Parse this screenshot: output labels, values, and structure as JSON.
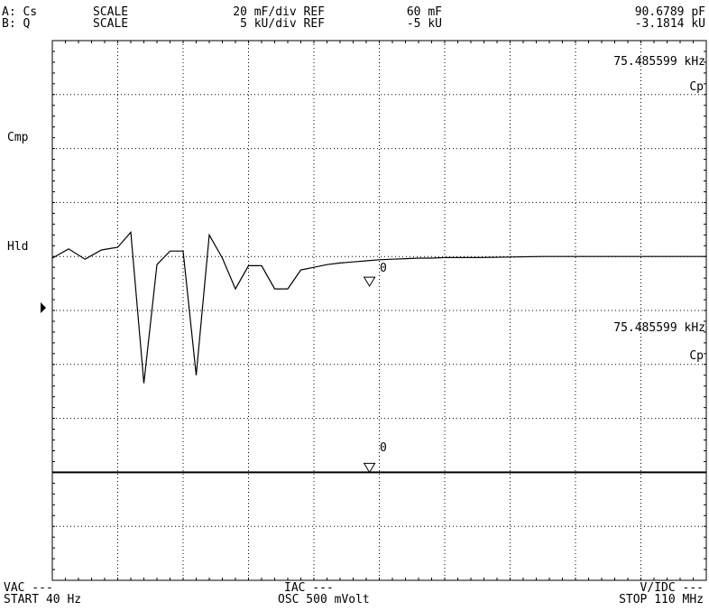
{
  "header": {
    "a_label": "A: Cs",
    "b_label": "B: Q",
    "a_scale_word": "SCALE",
    "b_scale_word": "SCALE",
    "a_scale_value": "20 mF/div REF",
    "b_scale_value": "5 kU/div REF",
    "a_ref_value": "60 mF",
    "b_ref_value": "-5 kU",
    "a_marker_value": "90.6789 pF",
    "b_marker_value": "-3.1814 kU"
  },
  "side_labels": {
    "cmp": "Cmp",
    "hld": "Hld"
  },
  "marker_readouts": {
    "top_freq": "75.485599 kHz",
    "top_param": "Cp",
    "bottom_freq": "75.485599 kHz",
    "bottom_param": "Cp"
  },
  "marker_labels": {
    "a": "0",
    "b": "0"
  },
  "footer": {
    "vac": "VAC ---",
    "iac": "IAC ---",
    "vdc": "V/IDC ---",
    "start": "START 40 Hz",
    "osc": "OSC 500 mVolt",
    "stop": "STOP 110 MHz"
  },
  "colors": {
    "trace": "#000000",
    "grid": "#000000",
    "background": "#ffffff"
  },
  "chart_data": {
    "type": "line",
    "grid": true,
    "x_divisions": 10,
    "y_divisions": 10,
    "x_start": "40 Hz",
    "x_stop": "110 MHz",
    "series": [
      {
        "id": "trace-a",
        "name": "",
        "x": [
          0.0,
          0.25,
          0.5,
          0.75,
          1.0,
          1.2,
          1.4,
          1.6,
          1.8,
          2.0,
          2.2,
          2.4,
          2.6,
          2.8,
          3.0,
          3.1,
          3.2,
          3.4,
          3.6,
          3.8,
          4.0,
          4.2,
          4.4,
          4.6,
          4.8,
          5.0,
          5.2,
          5.4,
          5.6,
          5.8,
          6.0,
          6.5,
          7.0,
          7.5,
          8.0,
          8.5,
          9.0,
          10.0
        ],
        "y": [
          4.03,
          3.86,
          4.05,
          3.88,
          3.83,
          3.55,
          6.35,
          4.15,
          3.9,
          3.9,
          6.2,
          3.6,
          4.03,
          4.6,
          4.17,
          4.17,
          4.17,
          4.6,
          4.6,
          4.25,
          4.2,
          4.15,
          4.12,
          4.1,
          4.08,
          4.06,
          4.05,
          4.04,
          4.03,
          4.03,
          4.02,
          4.02,
          4.01,
          4.0,
          4.0,
          4.0,
          4.0,
          4.0
        ]
      },
      {
        "id": "trace-b",
        "name": "",
        "x": [
          0.0,
          10.0
        ],
        "y": [
          8.0,
          8.0
        ]
      }
    ],
    "markers": [
      {
        "series": "trace-a",
        "x": 4.85,
        "y": 4.55
      },
      {
        "series": "trace-b",
        "x": 4.85,
        "y": 8.0
      }
    ]
  }
}
